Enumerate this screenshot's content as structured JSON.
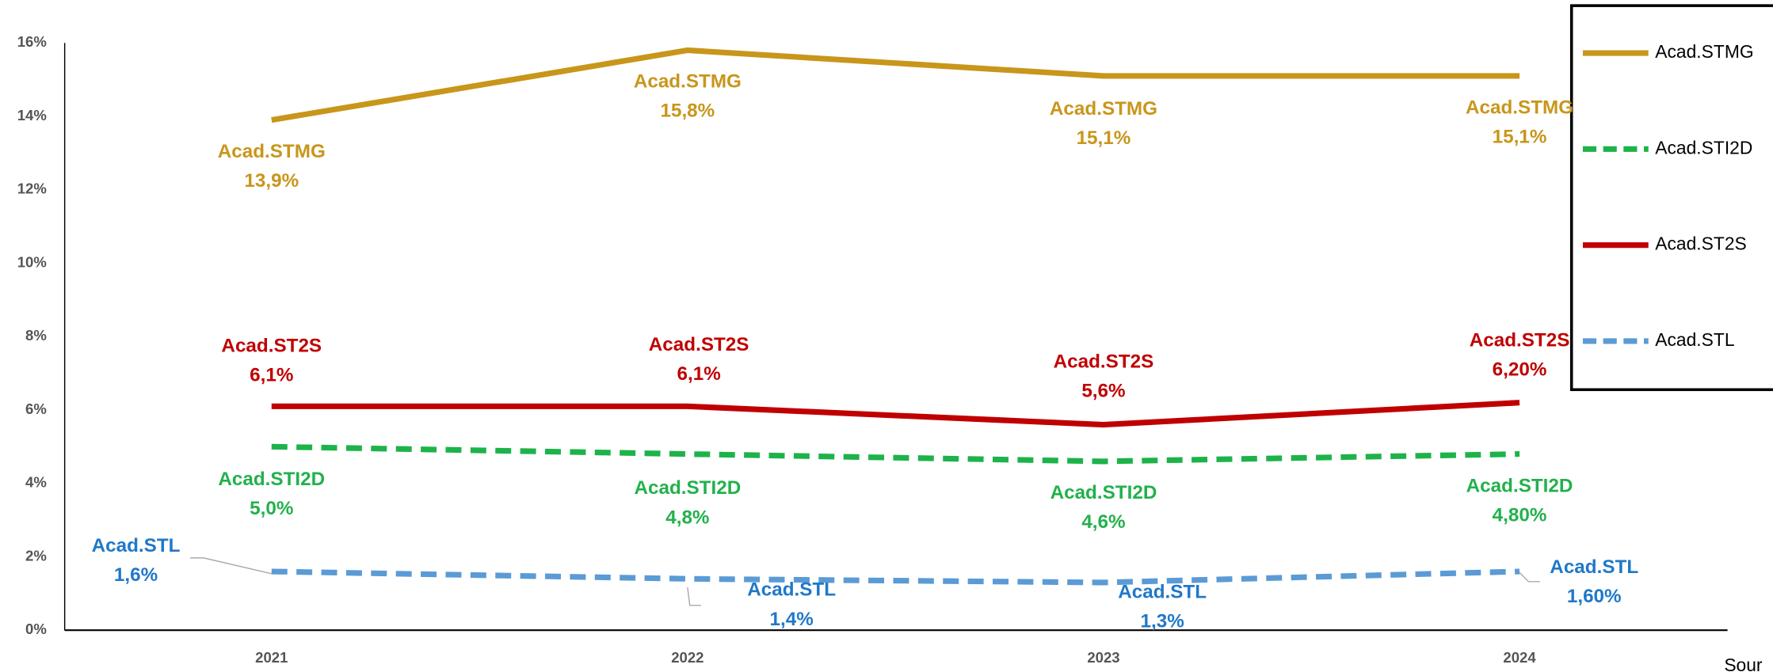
{
  "chart_data": {
    "type": "line",
    "categories": [
      "2021",
      "2022",
      "2023",
      "2024"
    ],
    "series": [
      {
        "name": "Acad.STMG",
        "color": "#c8961a",
        "label_color": "#c8961a",
        "dashed": false,
        "values": [
          13.9,
          15.8,
          15.1,
          15.1
        ],
        "value_labels": [
          "13,9%",
          "15,8%",
          "15,1%",
          "15,1%"
        ]
      },
      {
        "name": "Acad.STI2D",
        "color": "#1db34a",
        "label_color": "#22b14c",
        "dashed": true,
        "values": [
          5.0,
          4.8,
          4.6,
          4.8
        ],
        "value_labels": [
          "5,0%",
          "4,8%",
          "4,6%",
          "4,80%"
        ]
      },
      {
        "name": "Acad.ST2S",
        "color": "#c00000",
        "label_color": "#c00000",
        "dashed": false,
        "values": [
          6.1,
          6.1,
          5.6,
          6.2
        ],
        "value_labels": [
          "6,1%",
          "6,1%",
          "5,6%",
          "6,20%"
        ]
      },
      {
        "name": "Acad.STL",
        "color": "#5b9bd5",
        "label_color": "#1f78c8",
        "dashed": true,
        "values": [
          1.6,
          1.4,
          1.3,
          1.6
        ],
        "value_labels": [
          "1,6%",
          "1,4%",
          "1,3%",
          "1,60%"
        ]
      }
    ],
    "ylim": [
      0,
      16
    ],
    "yticks": [
      {
        "value": 0,
        "label": "0%"
      },
      {
        "value": 2,
        "label": "2%"
      },
      {
        "value": 4,
        "label": "4%"
      },
      {
        "value": 6,
        "label": "6%"
      },
      {
        "value": 8,
        "label": "8%"
      },
      {
        "value": 10,
        "label": "10%"
      },
      {
        "value": 12,
        "label": "12%"
      },
      {
        "value": 14,
        "label": "14%"
      },
      {
        "value": 16,
        "label": "16%"
      }
    ],
    "grid": false,
    "legend": "top-right",
    "source": "Sour"
  }
}
